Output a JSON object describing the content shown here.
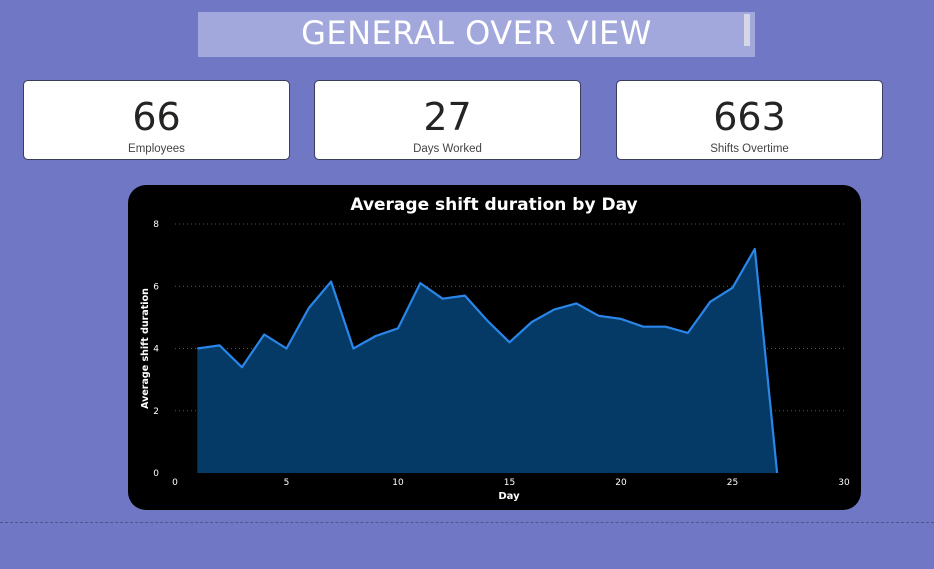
{
  "header": {
    "title": "GENERAL OVER VIEW"
  },
  "cards": [
    {
      "value": "66",
      "label": "Employees"
    },
    {
      "value": "27",
      "label": "Days Worked"
    },
    {
      "value": "663",
      "label": "Shifts Overtime"
    }
  ],
  "colors": {
    "background": "#7077c4",
    "title_bar": "#a3a8dc",
    "chart_line": "#2a86e8",
    "chart_fill": "#053a66"
  },
  "chart_data": {
    "type": "area",
    "title": "Average shift duration by Day",
    "xlabel": "Day",
    "ylabel": "Average shift duration",
    "xlim": [
      0,
      30
    ],
    "ylim": [
      0,
      8
    ],
    "x_ticks": [
      "0",
      "5",
      "10",
      "15",
      "20",
      "25",
      "30"
    ],
    "y_ticks": [
      "0",
      "2",
      "4",
      "6",
      "8"
    ],
    "grid": true,
    "x": [
      1,
      2,
      3,
      4,
      5,
      6,
      7,
      8,
      9,
      10,
      11,
      12,
      13,
      14,
      15,
      16,
      17,
      18,
      19,
      20,
      21,
      22,
      23,
      24,
      25,
      26,
      27
    ],
    "series": [
      {
        "values": [
          4.0,
          4.1,
          3.4,
          4.45,
          4.0,
          5.3,
          6.15,
          4.0,
          4.4,
          4.65,
          6.1,
          5.6,
          5.7,
          4.9,
          4.2,
          4.85,
          5.25,
          5.45,
          5.05,
          4.95,
          4.7,
          4.7,
          4.5,
          5.5,
          5.95,
          7.2,
          0.0
        ]
      }
    ]
  }
}
